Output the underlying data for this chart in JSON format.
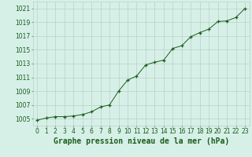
{
  "title": "Graphe pression niveau de la mer (hPa)",
  "x_values": [
    0,
    1,
    2,
    3,
    4,
    5,
    6,
    7,
    8,
    9,
    10,
    11,
    12,
    13,
    14,
    15,
    16,
    17,
    18,
    19,
    20,
    21,
    22,
    23
  ],
  "y_values": [
    1004.8,
    1005.1,
    1005.3,
    1005.3,
    1005.4,
    1005.6,
    1006.0,
    1006.7,
    1007.0,
    1009.0,
    1010.6,
    1011.2,
    1012.8,
    1013.2,
    1013.5,
    1015.2,
    1015.6,
    1016.9,
    1017.5,
    1018.0,
    1019.1,
    1019.2,
    1019.7,
    1021.0
  ],
  "line_color": "#1a5c1a",
  "marker_color": "#1a5c1a",
  "bg_color": "#d6f0e8",
  "grid_color": "#b8cfc8",
  "title_color": "#1a5c1a",
  "ylim": [
    1004.0,
    1022.0
  ],
  "xlim": [
    -0.5,
    23.5
  ],
  "tick_fontsize": 5.5,
  "title_fontsize": 7.0
}
